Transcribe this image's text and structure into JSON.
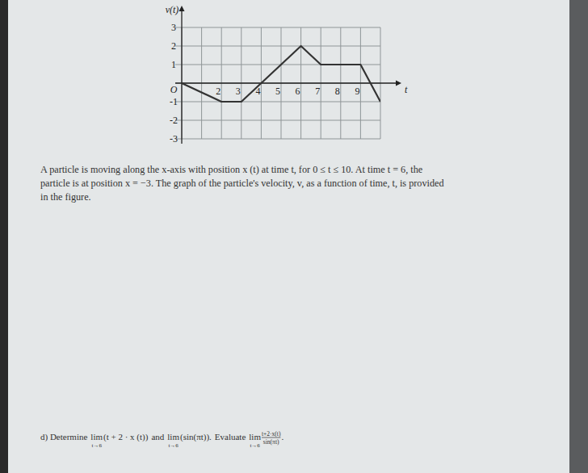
{
  "chart_data": {
    "type": "line",
    "ylabel": "v(t)",
    "xlabel": "t",
    "x": [
      0,
      2,
      3,
      4,
      6,
      7,
      9,
      10
    ],
    "values": [
      0,
      -1,
      -1,
      0,
      2,
      1,
      1,
      -1
    ],
    "color": "#333333",
    "xlim": [
      0,
      10
    ],
    "ylim": [
      -3,
      3
    ],
    "xticks": [
      {
        "value": 0,
        "label": null
      },
      {
        "value": 1,
        "label": null
      },
      2,
      3,
      4,
      5,
      6,
      7,
      8,
      9,
      {
        "value": 10,
        "label": null
      }
    ],
    "yticks": [
      -3,
      -2,
      -1,
      {
        "value": 0,
        "label": "O"
      },
      1,
      2,
      3
    ],
    "grid": true,
    "description": [
      "A particle is moving along the x-axis with position x (t) at time t, for 0 ≤ t ≤ 10. At time t = 6, the",
      "particle is at position x = −3. The graph of the particle's velocity, v, as a function of time, t, is provided",
      "in the figure."
    ],
    "question": {
      "label": "d) Determine",
      "lim": "lim",
      "approach": "t→6",
      "expr1": "(t + 2 · x (t))",
      "and": "and",
      "expr2": "(sin(πt)).",
      "evaluate": "Evaluate",
      "numerator": "t+2·x(t)",
      "denominator": "sin(πt)",
      "end": "."
    }
  }
}
